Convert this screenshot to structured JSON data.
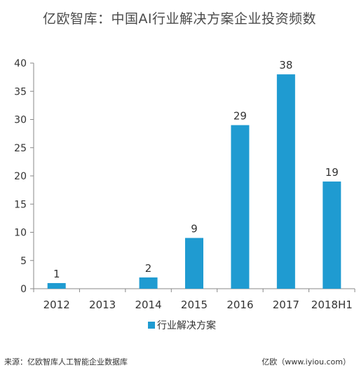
{
  "chart_data": {
    "type": "bar",
    "title": "亿欧智库：中国AI行业解决方案企业投资频数",
    "categories": [
      "2012",
      "2013",
      "2014",
      "2015",
      "2016",
      "2017",
      "2018H1"
    ],
    "series": [
      {
        "name": "行业解决方案",
        "values": [
          1,
          0,
          2,
          9,
          29,
          38,
          19
        ],
        "labels": [
          "1",
          "",
          "2",
          "9",
          "29",
          "38",
          "19"
        ],
        "color": "#1f9bd1"
      }
    ],
    "ylim": [
      0,
      40
    ],
    "yticks": [
      0,
      5,
      10,
      15,
      20,
      25,
      30,
      35,
      40
    ],
    "ytick_labels": [
      "0",
      "5",
      "10",
      "15",
      "20",
      "25",
      "30",
      "35",
      "40"
    ],
    "xlabel": "",
    "ylabel": "",
    "grid": false,
    "legend_position": "bottom-center",
    "axis_color": "#888888"
  },
  "footer": {
    "source": "来源：亿欧智库人工智能企业数据库",
    "brand": "亿欧（www.iyiou.com）"
  }
}
